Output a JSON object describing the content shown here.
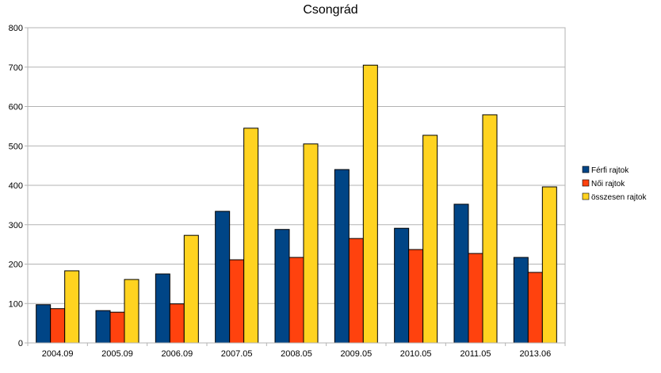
{
  "chart_data": {
    "type": "bar",
    "title": "Csongrád",
    "xlabel": "",
    "ylabel": "",
    "ylim": [
      0,
      800
    ],
    "yticks": [
      0,
      100,
      200,
      300,
      400,
      500,
      600,
      700,
      800
    ],
    "grid": true,
    "legend_position": "right",
    "categories": [
      "2004.09",
      "2005.09",
      "2006.09",
      "2007.05",
      "2008.05",
      "2009.05",
      "2010.05",
      "2011.05",
      "2013.06"
    ],
    "series": [
      {
        "name": "Férfi rajtok",
        "color": "#004586",
        "values": [
          97,
          82,
          175,
          334,
          288,
          440,
          291,
          352,
          217
        ]
      },
      {
        "name": "Női rajtok",
        "color": "#ff420e",
        "values": [
          87,
          78,
          99,
          211,
          217,
          265,
          237,
          227,
          179
        ]
      },
      {
        "name": "összesen rajtok",
        "color": "#ffd320",
        "values": [
          183,
          161,
          273,
          545,
          505,
          705,
          527,
          579,
          396
        ]
      }
    ]
  }
}
